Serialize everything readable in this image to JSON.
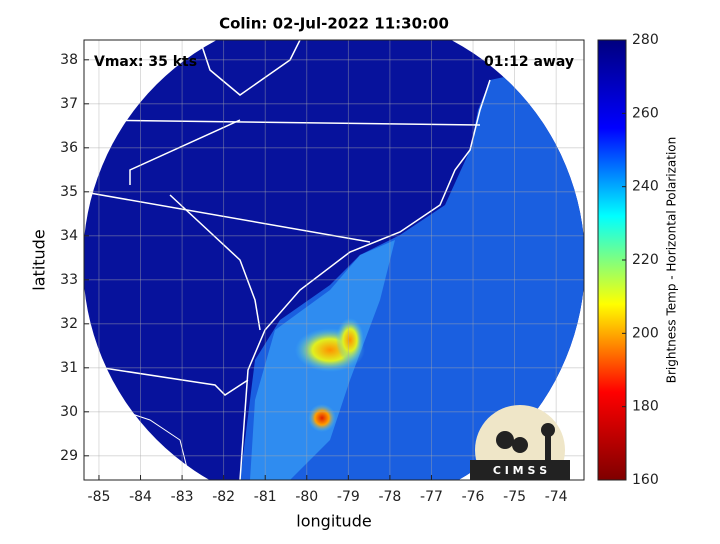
{
  "chart_data": {
    "type": "map",
    "title": "Colin: 02-Jul-2022 11:30:00",
    "annotations": [
      "Vmax: 35 kts",
      "01:12 away"
    ],
    "xlabel": "longitude",
    "ylabel": "latitude",
    "xlim": [
      -85.36,
      -73.33
    ],
    "ylim": [
      28.45,
      38.45
    ],
    "xticks": [
      -85,
      -84,
      -83,
      -82,
      -81,
      -80,
      -79,
      -78,
      -77,
      -76,
      -75,
      -74
    ],
    "yticks": [
      29,
      30,
      31,
      32,
      33,
      34,
      35,
      36,
      37,
      38
    ],
    "grid": true,
    "colorbar": {
      "label": "Brightness Temp - Horizontal Polarization",
      "lim": [
        160,
        280
      ],
      "ticks": [
        160,
        180,
        200,
        220,
        240,
        260,
        280
      ],
      "colormap": [
        "#7f0000",
        "#ff0000",
        "#ffff00",
        "#00ffff",
        "#0000ff",
        "#00007f"
      ]
    },
    "logo_text": "C I M S S"
  }
}
